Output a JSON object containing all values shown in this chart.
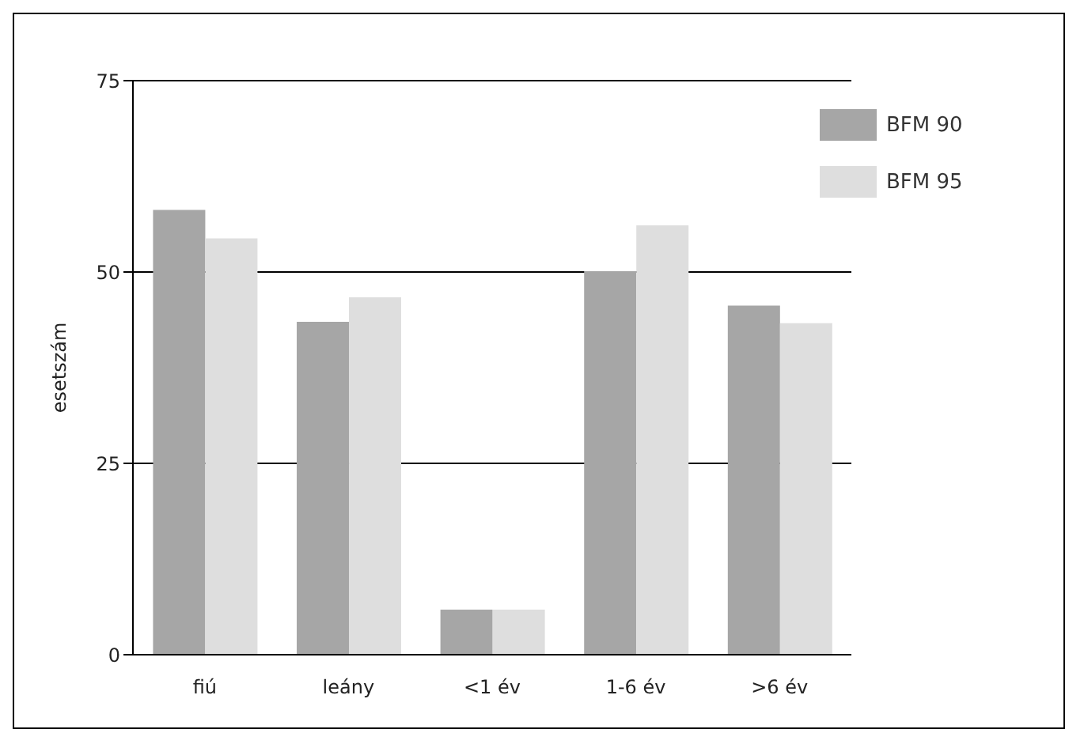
{
  "chart_data": {
    "type": "bar",
    "ylabel": "esetszám",
    "categories": [
      "fiú",
      "leány",
      "<1 év",
      "1-6 év",
      ">6 év"
    ],
    "series": [
      {
        "name": "BFM 90",
        "color": "#a6a6a6",
        "values": [
          58.1,
          43.5,
          5.9,
          50.1,
          45.6
        ]
      },
      {
        "name": "BFM 95",
        "color": "#dedede",
        "values": [
          54.4,
          46.7,
          5.9,
          56.1,
          43.3
        ]
      }
    ],
    "ylim": [
      0,
      75
    ],
    "yticks": [
      0,
      25,
      50,
      75
    ],
    "grid": "y",
    "legend": "top right"
  }
}
